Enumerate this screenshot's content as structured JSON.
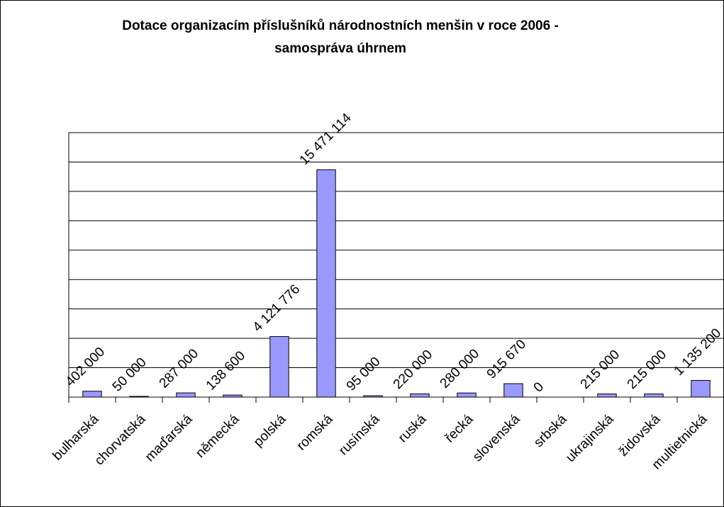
{
  "chart_data": {
    "type": "bar",
    "title": [
      "Dotace organizacím příslušníků národnostních menšin v roce 2006 -",
      "samospráva úhrnem"
    ],
    "categories": [
      "bulharská",
      "chorvatská",
      "maďarská",
      "německá",
      "polská",
      "romská",
      "rusínská",
      "ruská",
      "řecká",
      "slovenská",
      "srbská",
      "ukrajinská",
      "židovská",
      "multietnická"
    ],
    "values": [
      402000,
      50000,
      287000,
      138600,
      4121776,
      15471114,
      95000,
      220000,
      280000,
      915670,
      0,
      215000,
      215000,
      1135200
    ],
    "value_labels": [
      "402 000",
      "50 000",
      "287 000",
      "138 600",
      "4 121 776",
      "15 471 114",
      "95 000",
      "220 000",
      "280 000",
      "915 670",
      "0",
      "215 000",
      "215 000",
      "1 135 200"
    ],
    "color": "#9999ff",
    "ylim": [
      0,
      18000000
    ],
    "yticks": [
      0,
      2000000,
      4000000,
      6000000,
      8000000,
      10000000,
      12000000,
      14000000,
      16000000,
      18000000
    ],
    "grid": true
  }
}
